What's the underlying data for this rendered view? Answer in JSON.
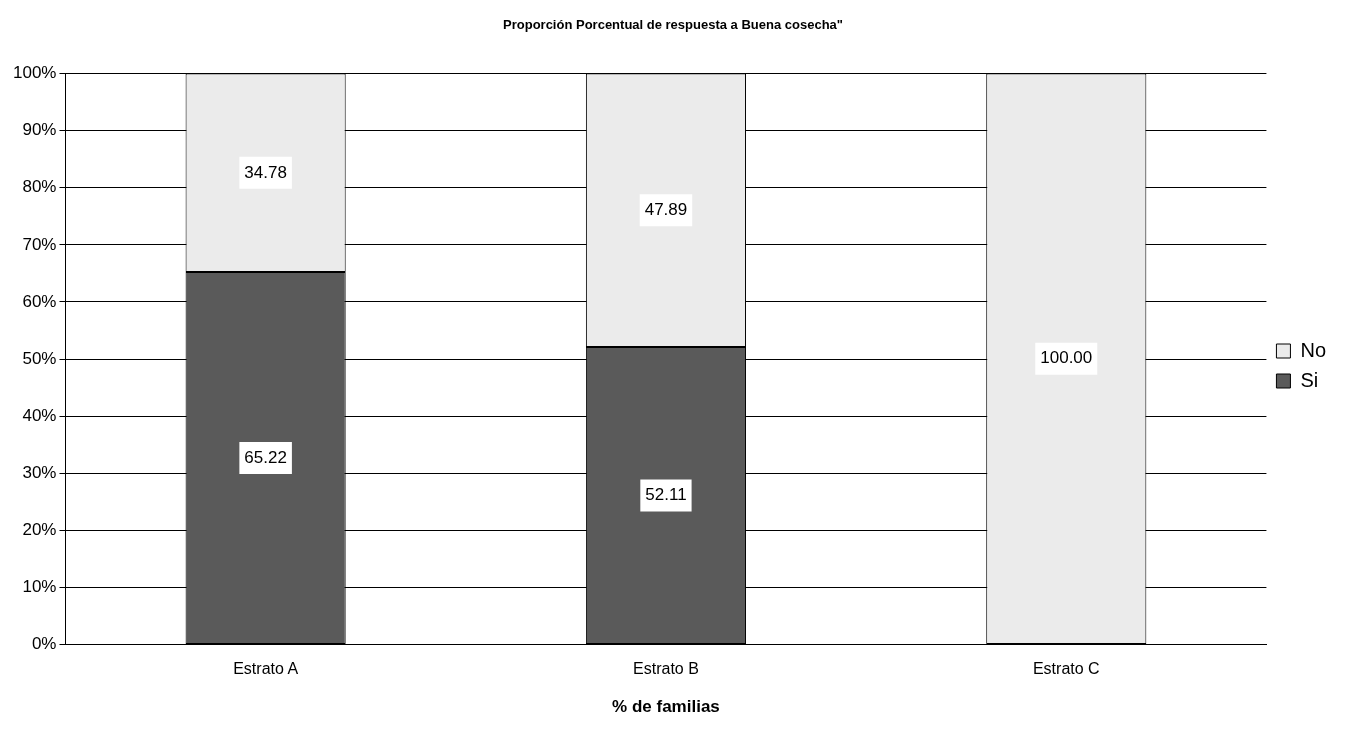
{
  "chart_data": {
    "type": "bar",
    "title": "Proporción Porcentual de respuesta a Buena cosecha\"",
    "xlabel": "% de familias",
    "categories": [
      "Estrato A",
      "Estrato B",
      "Estrato C"
    ],
    "stacked": true,
    "series": [
      {
        "name": "Si",
        "color": "#5a5a5a",
        "values": [
          65.22,
          52.11,
          0
        ],
        "value_labels": [
          "65.22",
          "52.11",
          null
        ]
      },
      {
        "name": "No",
        "color": "#ebebeb",
        "values": [
          34.78,
          47.89,
          100
        ],
        "value_labels": [
          "34.78",
          "47.89",
          "100.00"
        ]
      }
    ],
    "ylim": [
      0,
      100
    ],
    "yticks": [
      {
        "value": 0,
        "label": "0%"
      },
      {
        "value": 10,
        "label": "10%"
      },
      {
        "value": 20,
        "label": "20%"
      },
      {
        "value": 30,
        "label": "30%"
      },
      {
        "value": 40,
        "label": "40%"
      },
      {
        "value": 50,
        "label": "50%"
      },
      {
        "value": 60,
        "label": "60%"
      },
      {
        "value": 70,
        "label": "70%"
      },
      {
        "value": 80,
        "label": "80%"
      },
      {
        "value": 90,
        "label": "90%"
      },
      {
        "value": 100,
        "label": "100%"
      }
    ],
    "grid": "y",
    "legend": "right"
  }
}
